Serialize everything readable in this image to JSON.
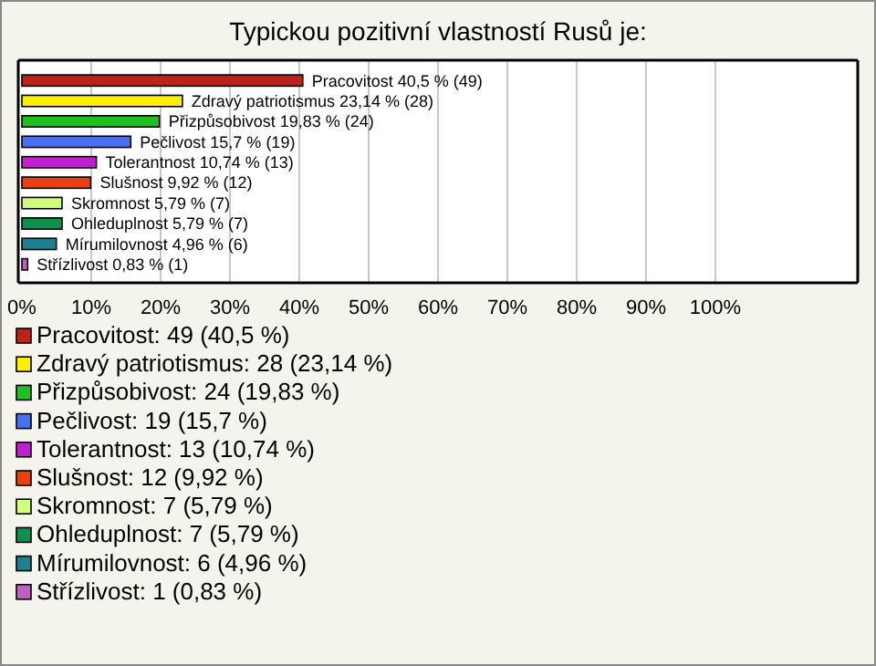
{
  "chart_data": {
    "type": "bar",
    "orientation": "horizontal",
    "title": "Typickou pozitivní vlastností Rusů je:",
    "categories": [
      null,
      null,
      null,
      null,
      null,
      null,
      null,
      null,
      null,
      null
    ],
    "values": [
      40.5,
      23.14,
      19.83,
      15.7,
      10.74,
      9.92,
      5.79,
      5.79,
      4.96,
      0.83
    ],
    "colors": [
      "#c0201a",
      "#fff000",
      "#20c020",
      "#4a70f0",
      "#c020d0",
      "#e84010",
      "#d0ff80",
      "#109050",
      "#208090",
      "#c060c0"
    ],
    "value_labels": [
      "Pracovitost 40,5 % (49)",
      "Zdravý patriotismus 23,14 % (28)",
      "Přizpůsobivost 19,83 % (24)",
      "Pečlivost 15,7 % (19)",
      "Tolerantnost 10,74 % (13)",
      "Slušnost 9,92 % (12)",
      "Skromnost 5,79 % (7)",
      "Ohleduplnost 5,79 % (7)",
      "Mírumilovnost 4,96 % (6)",
      "Střízlivost 0,83 % (1)"
    ],
    "xlim": [
      0,
      120
    ],
    "xticks": [
      {
        "value": 0,
        "label": "0%"
      },
      {
        "value": 10,
        "label": "10%"
      },
      {
        "value": 20,
        "label": "20%"
      },
      {
        "value": 30,
        "label": "30%"
      },
      {
        "value": 40,
        "label": "40%"
      },
      {
        "value": 50,
        "label": "50%"
      },
      {
        "value": 60,
        "label": "60%"
      },
      {
        "value": 70,
        "label": "70%"
      },
      {
        "value": 80,
        "label": "80%"
      },
      {
        "value": 90,
        "label": "90%"
      },
      {
        "value": 100,
        "label": "100%"
      }
    ],
    "grid": "x",
    "annotations": [
      "Pracovitost: 49 (40,5 %)",
      "Zdravý patriotismus: 28 (23,14 %)",
      "Přizpůsobivost: 24 (19,83 %)",
      "Pečlivost: 19 (15,7 %)",
      "Tolerantnost: 13 (10,74 %)",
      "Slušnost: 12 (9,92 %)",
      "Skromnost: 7 (5,79 %)",
      "Ohleduplnost: 7 (5,79 %)",
      "Mírumilovnost: 6 (4,96 %)",
      "Střízlivost: 1 (0,83 %)"
    ]
  }
}
